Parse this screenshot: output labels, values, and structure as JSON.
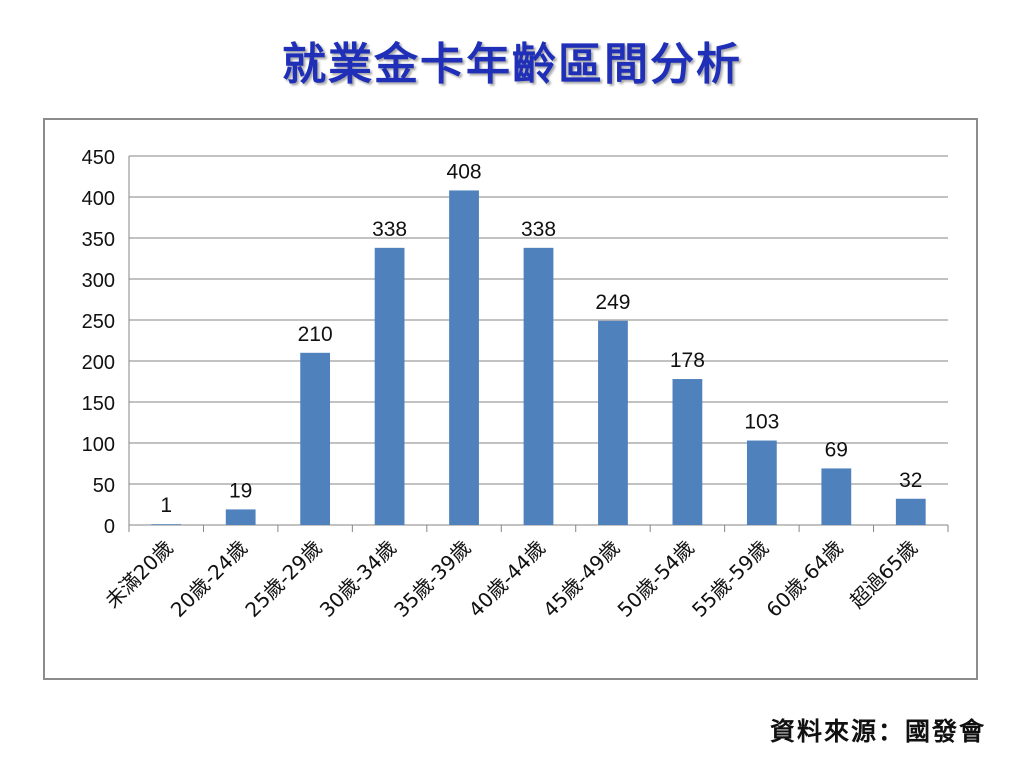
{
  "slide": {
    "title": "就業金卡年齡區間分析",
    "source": "資料來源：國發會"
  },
  "colors": {
    "title": "#1f2fb8",
    "bar": "#4f81bd",
    "grid": "#858585",
    "frame": "#8c8c8c"
  },
  "chart_data": {
    "type": "bar",
    "title": "",
    "xlabel": "",
    "ylabel": "",
    "categories": [
      "未滿20歲",
      "20歲-24歲",
      "25歲-29歲",
      "30歲-34歲",
      "35歲-39歲",
      "40歲-44歲",
      "45歲-49歲",
      "50歲-54歲",
      "55歲-59歲",
      "60歲-64歲",
      "超過65歲"
    ],
    "values": [
      1,
      19,
      210,
      338,
      408,
      338,
      249,
      178,
      103,
      69,
      32
    ],
    "ylim": [
      0,
      450
    ],
    "yticks": [
      0,
      50,
      100,
      150,
      200,
      250,
      300,
      350,
      400,
      450
    ],
    "grid": true,
    "legend": "none",
    "data_labels": true,
    "x_tick_rotation": "-45deg"
  }
}
